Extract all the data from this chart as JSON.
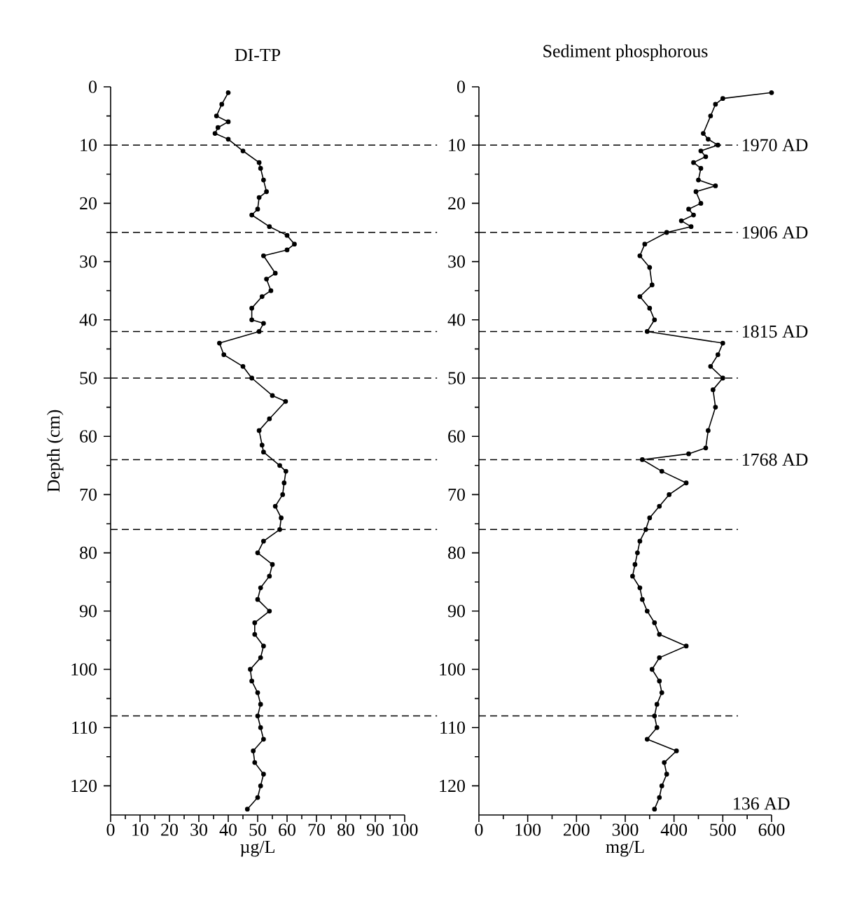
{
  "chart_data": [
    {
      "type": "line",
      "title": "DI-TP",
      "xlabel": "µg/L",
      "ylabel": "Depth (cm)",
      "marker": "circle",
      "line_style": "solid",
      "xlim": [
        0,
        100
      ],
      "xticks": [
        0,
        10,
        20,
        30,
        40,
        50,
        60,
        70,
        80,
        90,
        100
      ],
      "ylim": [
        125,
        0
      ],
      "yticks": [
        0,
        10,
        20,
        30,
        40,
        50,
        60,
        70,
        80,
        90,
        100,
        110,
        120
      ],
      "series": [
        {
          "color": "#000000",
          "x": [
            40,
            37.8,
            36,
            40,
            36.5,
            35.5,
            40,
            45,
            50.5,
            51,
            52,
            53,
            50.5,
            50,
            48,
            54,
            60,
            62.5,
            60,
            52,
            56,
            53,
            54.5,
            51.5,
            48,
            48,
            52,
            50.5,
            37,
            38.5,
            45,
            48,
            55,
            59.5,
            54,
            50.5,
            51.5,
            52,
            57.5,
            59.6,
            59,
            58.5,
            56,
            58,
            57.5,
            52,
            50,
            55,
            54,
            51,
            50,
            54,
            49,
            49,
            52,
            51,
            47.5,
            48,
            50,
            51,
            50,
            51,
            52,
            48.5,
            49,
            52,
            51,
            50,
            46.5
          ],
          "values": [
            1,
            3,
            5,
            6,
            7,
            8,
            9,
            11,
            13,
            14,
            16,
            18,
            19,
            21,
            22,
            24,
            25.5,
            27,
            28,
            29,
            32,
            33,
            35,
            36,
            38,
            40,
            40.6,
            42,
            44,
            46,
            48,
            50,
            53,
            54,
            57,
            59,
            61.5,
            62.7,
            65,
            66,
            68,
            70,
            72,
            74,
            76,
            78,
            80,
            82,
            84,
            86,
            88,
            90,
            92,
            94,
            96,
            98,
            100,
            102,
            104,
            106,
            108,
            110,
            112,
            114,
            116,
            118,
            120,
            122,
            124
          ]
        }
      ],
      "ref_lines": [
        {
          "axis": "y",
          "value": 10,
          "line_style": "dashed"
        },
        {
          "axis": "y",
          "value": 25,
          "line_style": "dashed"
        },
        {
          "axis": "y",
          "value": 42,
          "line_style": "dashed"
        },
        {
          "axis": "y",
          "value": 50,
          "line_style": "dashed"
        },
        {
          "axis": "y",
          "value": 64,
          "line_style": "dashed"
        },
        {
          "axis": "y",
          "value": 76,
          "line_style": "dashed"
        },
        {
          "axis": "y",
          "value": 108,
          "line_style": "dashed"
        }
      ]
    },
    {
      "type": "line",
      "title": "Sediment phosphorous",
      "xlabel": "mg/L",
      "marker": "circle",
      "line_style": "solid",
      "xlim": [
        0,
        600
      ],
      "xticks": [
        0,
        100,
        200,
        300,
        400,
        500,
        600
      ],
      "ylim": [
        125,
        0
      ],
      "yticks": [
        0,
        10,
        20,
        30,
        40,
        50,
        60,
        70,
        80,
        90,
        100,
        110,
        120
      ],
      "series": [
        {
          "color": "#000000",
          "x": [
            600,
            500,
            485,
            475,
            460,
            470,
            490,
            455,
            465,
            440,
            455,
            450,
            485,
            445,
            455,
            430,
            440,
            415,
            435,
            385,
            340,
            330,
            350,
            355,
            330,
            350,
            360,
            345,
            500,
            490,
            475,
            500,
            480,
            485,
            470,
            465,
            430,
            335,
            375,
            425,
            390,
            370,
            350,
            342,
            330,
            325,
            320,
            315,
            330,
            335,
            345,
            360,
            370,
            425,
            370,
            355,
            370,
            375,
            365,
            360,
            365,
            345,
            405,
            380,
            385,
            375,
            370,
            360
          ],
          "values": [
            1,
            2,
            3,
            5,
            8,
            9,
            10,
            11,
            12,
            13,
            14,
            16,
            17,
            18,
            20,
            21,
            22,
            23,
            24,
            25,
            27,
            29,
            31,
            34,
            36,
            38,
            40,
            42,
            44,
            46,
            48,
            50,
            52,
            55,
            59,
            62,
            63,
            64,
            66,
            68,
            70,
            72,
            74,
            76,
            78,
            80,
            82,
            84,
            86,
            88,
            90,
            92,
            94,
            96,
            98,
            100,
            102,
            104,
            106,
            108,
            110,
            112,
            114,
            116,
            118,
            120,
            122,
            124
          ]
        }
      ],
      "ref_lines": [
        {
          "axis": "y",
          "value": 10,
          "line_style": "dashed",
          "label": "1970 AD"
        },
        {
          "axis": "y",
          "value": 25,
          "line_style": "dashed",
          "label": "1906 AD"
        },
        {
          "axis": "y",
          "value": 42,
          "line_style": "dashed",
          "label": "1815 AD"
        },
        {
          "axis": "y",
          "value": 50,
          "line_style": "dashed"
        },
        {
          "axis": "y",
          "value": 64,
          "line_style": "dashed",
          "label": "1768 AD"
        },
        {
          "axis": "y",
          "value": 76,
          "line_style": "dashed"
        },
        {
          "axis": "y",
          "value": 108,
          "line_style": "dashed"
        }
      ],
      "annotations": [
        "136 AD"
      ]
    }
  ]
}
